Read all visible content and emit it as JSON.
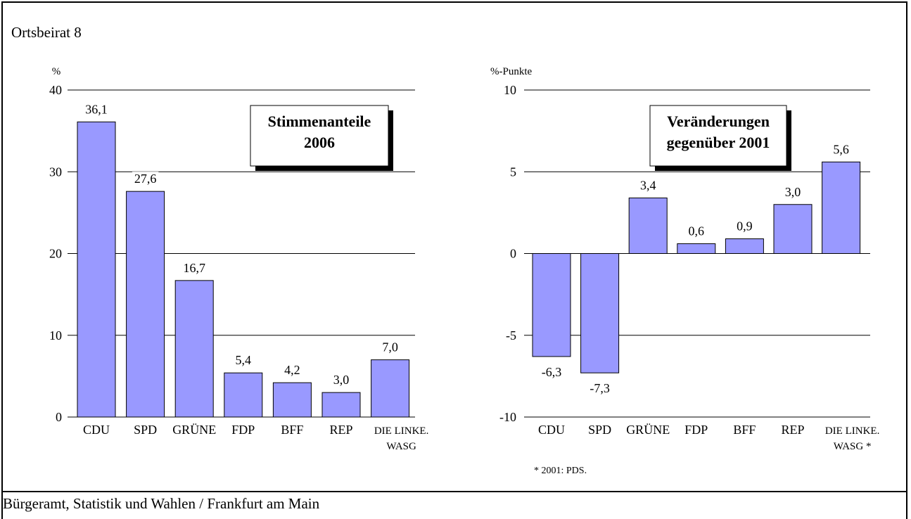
{
  "header": {
    "title": "Ortsbeirat 8"
  },
  "footer": {
    "source": "Bürgeramt, Statistik und Wahlen / Frankfurt am Main"
  },
  "colors": {
    "bar_fill": "#9999ff",
    "bar_stroke": "#000000",
    "grid": "#000000"
  },
  "chart_data": [
    {
      "type": "bar",
      "title": "Stimmenanteile 2006",
      "title_lines": [
        "Stimmenanteile",
        "2006"
      ],
      "ylabel": "%",
      "ylim": [
        0,
        40
      ],
      "yticks": [
        0,
        10,
        20,
        30,
        40
      ],
      "ytick_labels": [
        "0",
        "10",
        "20",
        "30",
        "40"
      ],
      "categories": [
        "CDU",
        "SPD",
        "GRÜNE",
        "FDP",
        "BFF",
        "REP",
        "DIE LINKE. WASG"
      ],
      "category_lines": [
        [
          "CDU"
        ],
        [
          "SPD"
        ],
        [
          "GRÜNE"
        ],
        [
          "FDP"
        ],
        [
          "BFF"
        ],
        [
          "REP"
        ],
        [
          "DIE LINKE.",
          "WASG"
        ]
      ],
      "values": [
        36.1,
        27.6,
        16.7,
        5.4,
        4.2,
        3.0,
        7.0
      ],
      "value_labels": [
        "36,1",
        "27,6",
        "16,7",
        "5,4",
        "4,2",
        "3,0",
        "7,0"
      ],
      "grid": true,
      "footnote": ""
    },
    {
      "type": "bar",
      "title": "Veränderungen gegenüber 2001",
      "title_lines": [
        "Veränderungen",
        "gegenüber 2001"
      ],
      "ylabel": "%-Punkte",
      "ylim": [
        -10,
        10
      ],
      "yticks": [
        -10,
        -5,
        0,
        5,
        10
      ],
      "ytick_labels": [
        "-10",
        "-5",
        "0",
        "5",
        "10"
      ],
      "categories": [
        "CDU",
        "SPD",
        "GRÜNE",
        "FDP",
        "BFF",
        "REP",
        "DIE LINKE. WASG *"
      ],
      "category_lines": [
        [
          "CDU"
        ],
        [
          "SPD"
        ],
        [
          "GRÜNE"
        ],
        [
          "FDP"
        ],
        [
          "BFF"
        ],
        [
          "REP"
        ],
        [
          "DIE LINKE.",
          "WASG *"
        ]
      ],
      "values": [
        -6.3,
        -7.3,
        3.4,
        0.6,
        0.9,
        3.0,
        5.6
      ],
      "value_labels": [
        "-6,3",
        "-7,3",
        "3,4",
        "0,6",
        "0,9",
        "3,0",
        "5,6"
      ],
      "grid": true,
      "footnote": "* 2001: PDS."
    }
  ]
}
